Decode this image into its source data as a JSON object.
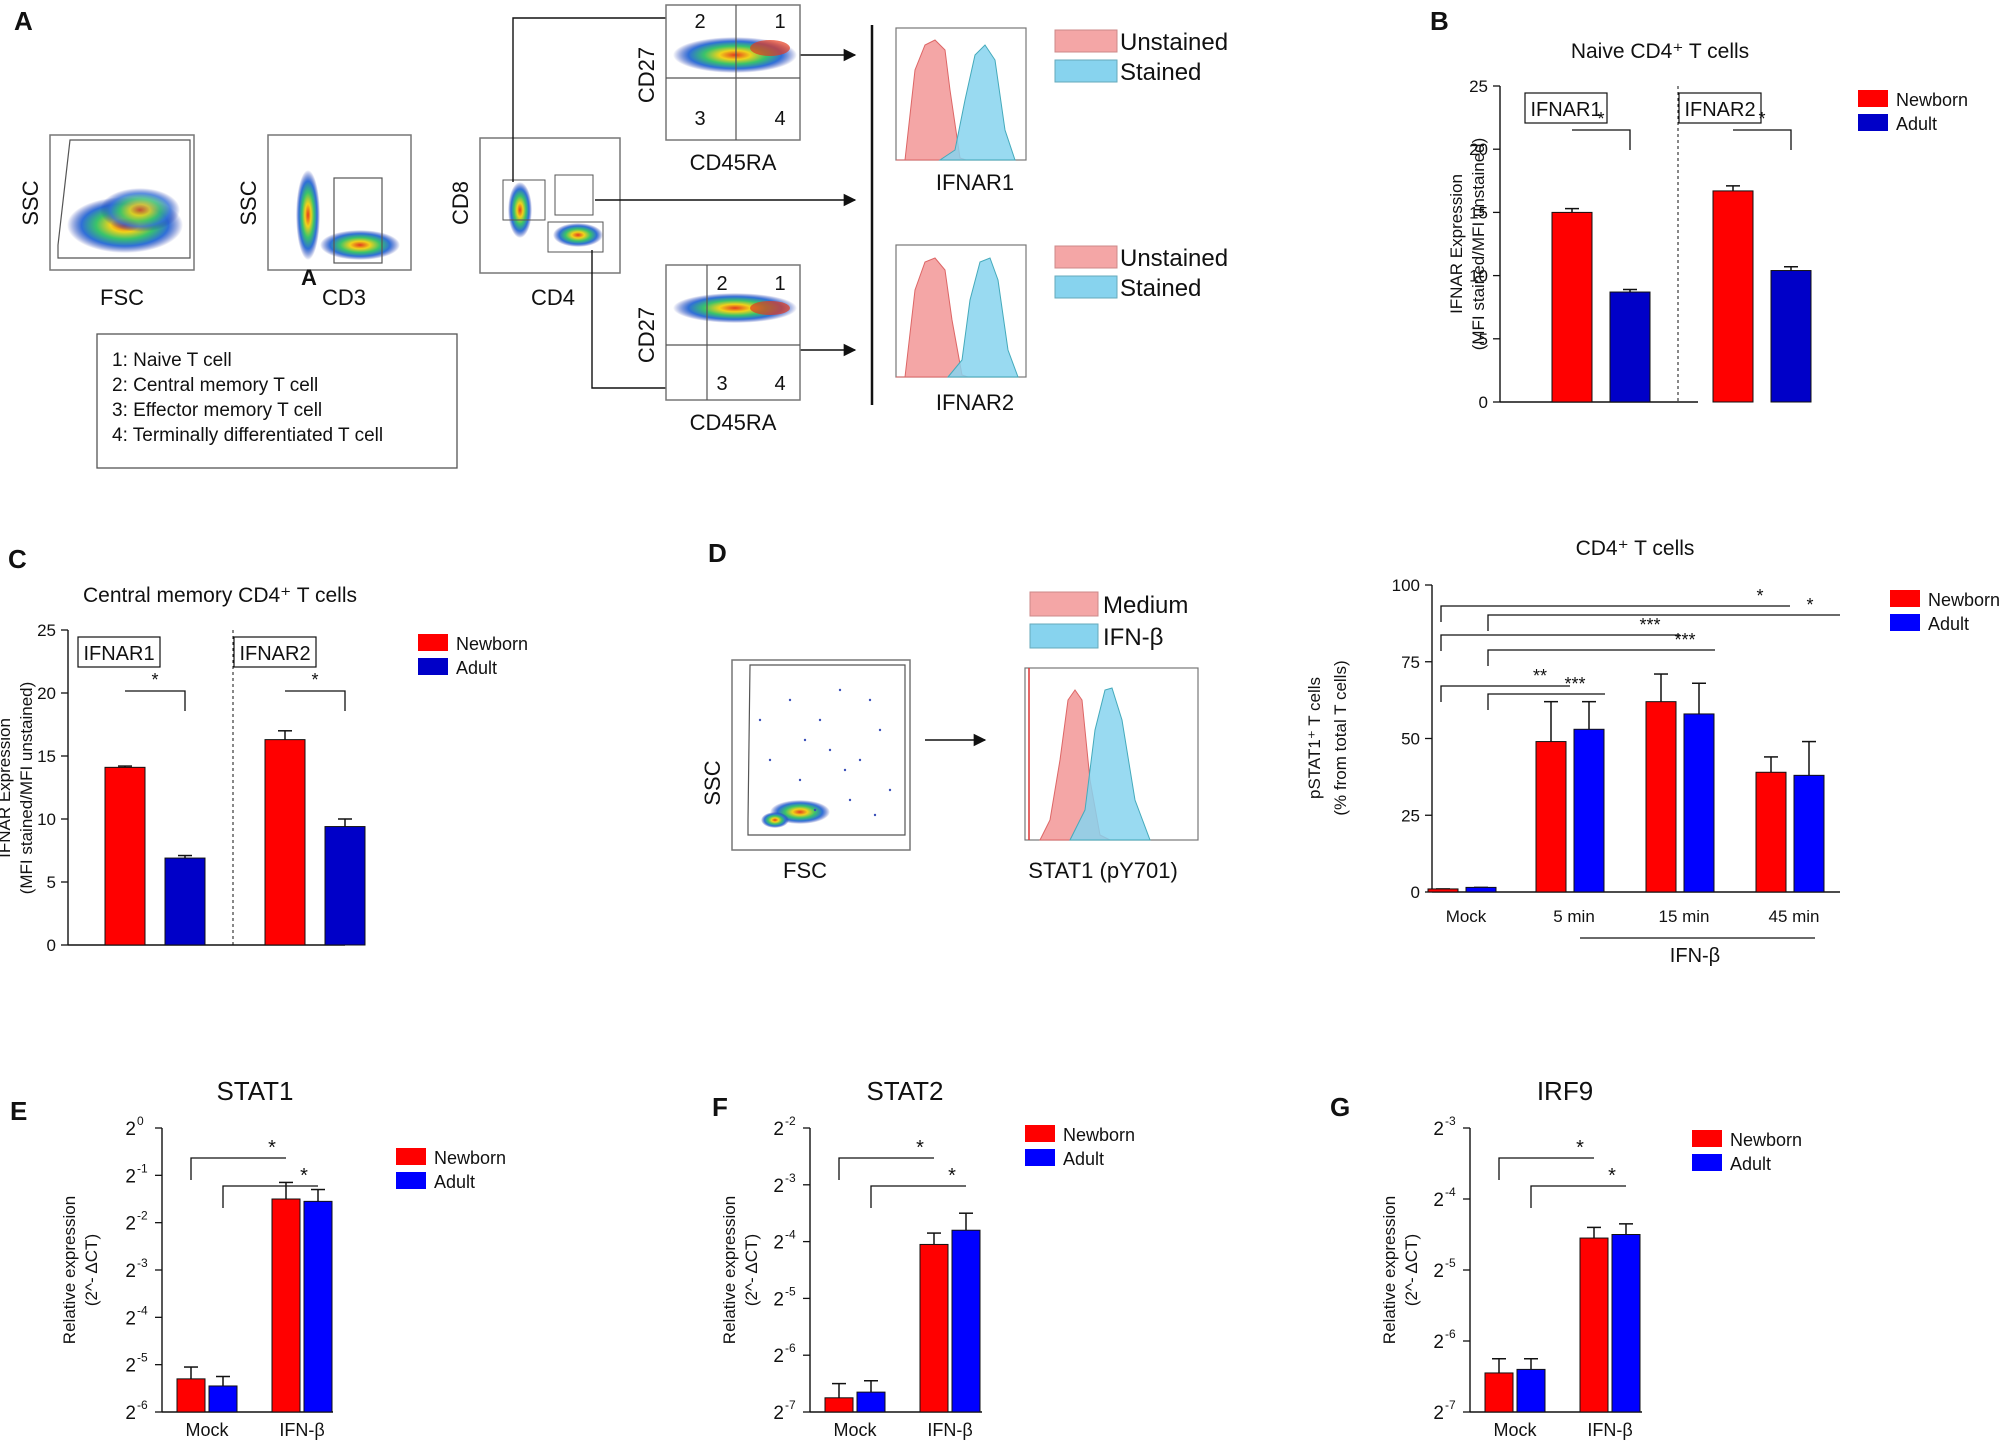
{
  "panel_letters": [
    "A",
    "B",
    "C",
    "D",
    "E",
    "F",
    "G"
  ],
  "flow": {
    "fsc": "FSC",
    "ssc": "SSC",
    "cd3": "CD3",
    "cd3_gate": "A",
    "cd8": "CD8",
    "cd4": "CD4",
    "cd27": "CD27",
    "cd45ra": "CD45RA",
    "ifnar1": "IFNAR1",
    "ifnar2": "IFNAR2",
    "quadrants": [
      "1",
      "2",
      "3",
      "4"
    ],
    "unstained": "Unstained",
    "stained": "Stained",
    "legend_box": [
      "1: Naive T cell",
      "2: Central memory T cell",
      "3: Effector memory T cell",
      "4: Terminally differentiated T cell"
    ],
    "medium": "Medium",
    "ifnb": "IFN-β",
    "stat1_axis": "STAT1 (pY701)"
  },
  "colors": {
    "red": "#ff0000",
    "darkblue": "#0000c8",
    "blue": "#0000ff",
    "pink": "#f4a6a6",
    "cyan": "#87d3ee"
  },
  "chart_data": [
    {
      "id": "B",
      "type": "bar",
      "title": "Naive CD4⁺ T cells",
      "ylabel": "IFNAR Expression",
      "ylabel2": "(MFI stained/MFI unstained)",
      "ylim": [
        0,
        25
      ],
      "yticks": [
        "0",
        "5",
        "10",
        "15",
        "20",
        "25"
      ],
      "tick_values": [
        0,
        5,
        10,
        15,
        20,
        25
      ],
      "groups": [
        "IFNAR1",
        "IFNAR2"
      ],
      "series": [
        {
          "name": "Newborn",
          "color": "#ff0000",
          "values": [
            15.0,
            16.7
          ],
          "errors": [
            0.3,
            0.4
          ]
        },
        {
          "name": "Adult",
          "color": "#0000c8",
          "values": [
            8.7,
            10.4
          ],
          "errors": [
            0.2,
            0.3
          ]
        }
      ],
      "significance": [
        "*",
        "*"
      ]
    },
    {
      "id": "C",
      "type": "bar",
      "title": "Central memory CD4⁺ T cells",
      "ylabel": "IFNAR Expression",
      "ylabel2": "(MFI stained/MFI unstained)",
      "ylim": [
        0,
        25
      ],
      "yticks": [
        "0",
        "5",
        "10",
        "15",
        "20",
        "25"
      ],
      "tick_values": [
        0,
        5,
        10,
        15,
        20,
        25
      ],
      "groups": [
        "IFNAR1",
        "IFNAR2"
      ],
      "series": [
        {
          "name": "Newborn",
          "color": "#ff0000",
          "values": [
            14.1,
            16.3
          ],
          "errors": [
            0.1,
            0.7
          ]
        },
        {
          "name": "Adult",
          "color": "#0000c8",
          "values": [
            6.9,
            9.4
          ],
          "errors": [
            0.2,
            0.6
          ]
        }
      ],
      "significance": [
        "*",
        "*"
      ]
    },
    {
      "id": "D",
      "type": "bar",
      "title": "CD4⁺  T cells",
      "ylabel": "pSTAT1⁺ T cells",
      "ylabel2": "(% from total T cells)",
      "ylim": [
        0,
        100
      ],
      "yticks": [
        "0",
        "25",
        "50",
        "75",
        "100"
      ],
      "tick_values": [
        0,
        25,
        50,
        75,
        100
      ],
      "categories": [
        "Mock",
        "5 min",
        "15 min",
        "45 min"
      ],
      "xgroup_label": "IFN-β",
      "series": [
        {
          "name": "Newborn",
          "color": "#ff0000",
          "values": [
            1,
            49,
            62,
            39
          ],
          "errors": [
            0,
            13,
            9,
            5
          ]
        },
        {
          "name": "Adult",
          "color": "#0000ff",
          "values": [
            1.5,
            53,
            58,
            38
          ],
          "errors": [
            0,
            9,
            10,
            11
          ]
        }
      ],
      "significance": [
        "*",
        "*",
        "***",
        "***",
        "**",
        "***"
      ]
    },
    {
      "id": "E",
      "type": "bar",
      "scale": "log2",
      "title": "STAT1",
      "ylabel": "Relative expression",
      "ylabel2": "(2^- ΔCT)",
      "ylim": [
        -6,
        0
      ],
      "tick_values": [
        -6,
        -5,
        -4,
        -3,
        -2,
        -1,
        0
      ],
      "categories": [
        "Mock",
        "IFN-β"
      ],
      "series": [
        {
          "name": "Newborn",
          "color": "#ff0000",
          "values": [
            -5.3,
            -1.5
          ],
          "errors": [
            0.25,
            0.35
          ]
        },
        {
          "name": "Adult",
          "color": "#0000ff",
          "values": [
            -5.45,
            -1.55
          ],
          "errors": [
            0.2,
            0.25
          ]
        }
      ],
      "significance": [
        "*",
        "*"
      ]
    },
    {
      "id": "F",
      "type": "bar",
      "scale": "log2",
      "title": "STAT2",
      "ylabel": "Relative expression",
      "ylabel2": "(2^- ΔCT)",
      "ylim": [
        -7,
        -2
      ],
      "tick_values": [
        -7,
        -6,
        -5,
        -4,
        -3,
        -2
      ],
      "categories": [
        "Mock",
        "IFN-β"
      ],
      "series": [
        {
          "name": "Newborn",
          "color": "#ff0000",
          "values": [
            -6.75,
            -4.05
          ],
          "errors": [
            0.25,
            0.2
          ]
        },
        {
          "name": "Adult",
          "color": "#0000ff",
          "values": [
            -6.65,
            -3.8
          ],
          "errors": [
            0.2,
            0.3
          ]
        }
      ],
      "significance": [
        "*",
        "*"
      ]
    },
    {
      "id": "G",
      "type": "bar",
      "scale": "log2",
      "title": "IRF9",
      "ylabel": "Relative expression",
      "ylabel2": "(2^- ΔCT)",
      "ylim": [
        -7,
        -3
      ],
      "tick_values": [
        -7,
        -6,
        -5,
        -4,
        -3
      ],
      "categories": [
        "Mock",
        "IFN-β"
      ],
      "series": [
        {
          "name": "Newborn",
          "color": "#ff0000",
          "values": [
            -6.45,
            -4.55
          ],
          "errors": [
            0.2,
            0.15
          ]
        },
        {
          "name": "Adult",
          "color": "#0000ff",
          "values": [
            -6.4,
            -4.5
          ],
          "errors": [
            0.15,
            0.15
          ]
        }
      ],
      "significance": [
        "*",
        "*"
      ]
    }
  ]
}
